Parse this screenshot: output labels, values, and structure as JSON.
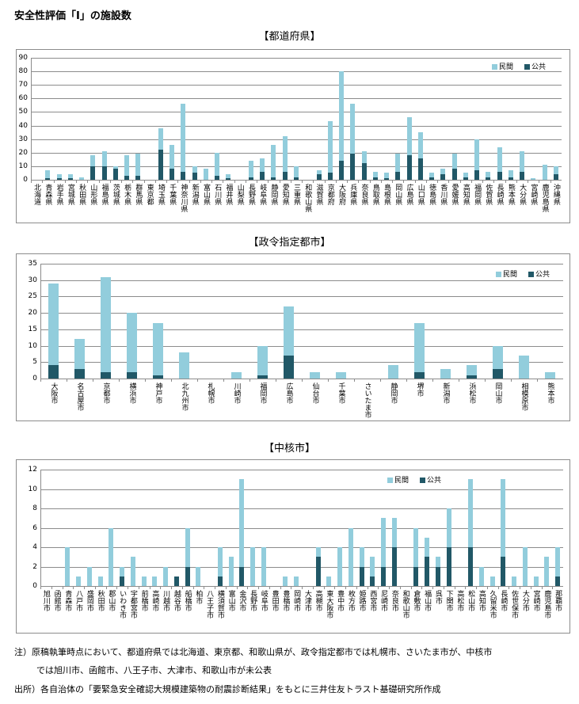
{
  "title": "安全性評価「Ⅰ」の施設数",
  "notes": [
    "注）原稿執筆時点において、都道府県では北海道、東京都、和歌山県が、政令指定都市では札幌市、さいたま市が、中核市",
    "では旭川市、函館市、八王子市、大津市、和歌山市が未公表",
    "出所）各自治体の「要緊急安全確認大規模建築物の耐震診断結果」をもとに三井住友トラスト基礎研究所作成"
  ],
  "colors": {
    "private": "#92CDDC",
    "public": "#215867"
  },
  "chart_data": [
    {
      "type": "bar",
      "stacked": true,
      "title": "【都道府県】",
      "ylim": [
        0,
        90
      ],
      "yticks": [
        0,
        10,
        20,
        30,
        40,
        50,
        60,
        70,
        80,
        90
      ],
      "grid": true,
      "legend": "top-right",
      "categories": [
        "北海道",
        "青森県",
        "岩手県",
        "宮城県",
        "秋田県",
        "山形県",
        "福島県",
        "茨城県",
        "栃木県",
        "群馬県",
        "東京都",
        "埼玉県",
        "千葉県",
        "神奈川県",
        "新潟県",
        "富山県",
        "石川県",
        "福井県",
        "山梨県",
        "長野県",
        "岐阜県",
        "静岡県",
        "愛知県",
        "三重県",
        "和歌山県",
        "滋賀県",
        "京都府",
        "大阪府",
        "兵庫県",
        "奈良県",
        "鳥取県",
        "島根県",
        "岡山県",
        "広島県",
        "山口県",
        "徳島県",
        "香川県",
        "愛媛県",
        "高知県",
        "福岡県",
        "佐賀県",
        "長崎県",
        "熊本県",
        "大分県",
        "宮崎県",
        "鹿児島県",
        "沖縄県"
      ],
      "series": [
        {
          "name": "公共",
          "values": [
            0,
            1,
            1,
            1,
            0,
            10,
            10,
            8,
            3,
            3,
            0,
            22,
            8,
            6,
            5,
            0,
            3,
            1,
            0,
            2,
            6,
            2,
            6,
            2,
            0,
            4,
            5,
            14,
            19,
            12,
            2,
            1,
            6,
            18,
            16,
            2,
            4,
            8,
            2,
            7,
            2,
            6,
            2,
            6,
            0,
            0,
            4
          ]
        },
        {
          "name": "民間",
          "values": [
            0,
            6,
            3,
            3,
            2,
            8,
            11,
            2,
            15,
            16,
            0,
            16,
            18,
            50,
            5,
            8,
            17,
            3,
            0,
            12,
            10,
            24,
            26,
            8,
            0,
            3,
            38,
            66,
            37,
            9,
            4,
            4,
            13,
            28,
            19,
            3,
            4,
            11,
            3,
            23,
            4,
            18,
            5,
            15,
            1,
            11,
            6
          ]
        }
      ]
    },
    {
      "type": "bar",
      "stacked": true,
      "title": "【政令指定都市】",
      "ylim": [
        0,
        35
      ],
      "yticks": [
        0,
        5,
        10,
        15,
        20,
        25,
        30,
        35
      ],
      "grid": true,
      "legend": "top-right",
      "categories": [
        "大阪市",
        "名古屋市",
        "京都市",
        "横浜市",
        "神戸市",
        "北九州市",
        "札幌市",
        "川崎市",
        "福岡市",
        "広島市",
        "仙台市",
        "千葉市",
        "さいたま市",
        "静岡市",
        "堺市",
        "新潟市",
        "浜松市",
        "岡山市",
        "相模原市",
        "熊本市"
      ],
      "series": [
        {
          "name": "公共",
          "values": [
            4,
            3,
            2,
            2,
            1,
            0,
            0,
            0,
            1,
            7,
            0,
            0,
            0,
            0,
            2,
            0,
            1,
            3,
            0,
            0
          ]
        },
        {
          "name": "民間",
          "values": [
            25,
            9,
            29,
            18,
            16,
            8,
            0,
            2,
            9,
            15,
            2,
            2,
            0,
            4,
            15,
            3,
            3,
            7,
            7,
            2
          ]
        }
      ]
    },
    {
      "type": "bar",
      "stacked": true,
      "title": "【中核市】",
      "ylim": [
        0,
        12
      ],
      "yticks": [
        0,
        2,
        4,
        6,
        8,
        10,
        12
      ],
      "grid": true,
      "legend": "top-center",
      "categories": [
        "旭川市",
        "函館市",
        "青森市",
        "八戸市",
        "盛岡市",
        "秋田市",
        "郡山市",
        "いわき市",
        "宇都宮市",
        "前橋市",
        "高崎市",
        "川越市",
        "越谷市",
        "船橋市",
        "柏市",
        "八王子市",
        "横須賀市",
        "富山市",
        "金沢市",
        "長野市",
        "岐阜市",
        "豊田市",
        "豊橋市",
        "岡崎市",
        "大津市",
        "高槻市",
        "東大阪市",
        "豊中市",
        "枚方市",
        "姫路市",
        "西宮市",
        "尼崎市",
        "奈良市",
        "和歌山市",
        "倉敷市",
        "福山市",
        "呉市",
        "下関市",
        "高松市",
        "松山市",
        "高知市",
        "久留米市",
        "長崎市",
        "佐世保市",
        "大分市",
        "宮崎市",
        "鹿児島市",
        "那覇市"
      ],
      "series": [
        {
          "name": "公共",
          "values": [
            0,
            0,
            0,
            0,
            0,
            0,
            0,
            1,
            0,
            0,
            0,
            0,
            1,
            2,
            0,
            0,
            1,
            0,
            2,
            0,
            0,
            0,
            0,
            0,
            0,
            3,
            0,
            0,
            0,
            2,
            1,
            2,
            4,
            0,
            2,
            3,
            2,
            4,
            0,
            4,
            0,
            0,
            3,
            0,
            0,
            0,
            0,
            1
          ]
        },
        {
          "name": "民間",
          "values": [
            0,
            0,
            4,
            1,
            2,
            1,
            6,
            1,
            3,
            1,
            1,
            2,
            0,
            4,
            2,
            0,
            3,
            3,
            9,
            4,
            4,
            0,
            1,
            1,
            0,
            1,
            1,
            4,
            6,
            2,
            2,
            5,
            3,
            0,
            4,
            2,
            1,
            4,
            0,
            7,
            2,
            1,
            8,
            1,
            4,
            1,
            3,
            3
          ]
        }
      ]
    }
  ]
}
